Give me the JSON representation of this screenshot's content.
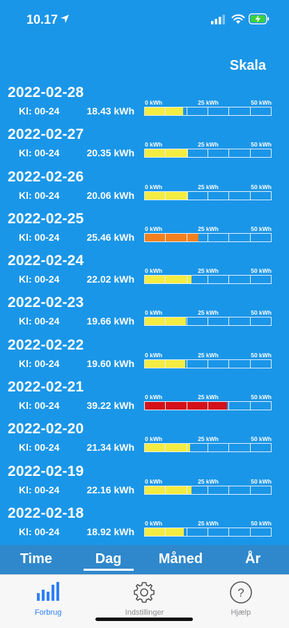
{
  "status": {
    "time": "10.17"
  },
  "header": {
    "scale_label": "Skala"
  },
  "scale": {
    "max_kwh": 60,
    "ticks": [
      "0 kWh",
      "25 kWh",
      "50 kWh"
    ]
  },
  "colors": {
    "normal": "#f4ec42",
    "elevated": "#f2801e",
    "high": "#d4111a",
    "background": "#1a96e8"
  },
  "days": [
    {
      "date": "2022-02-28",
      "interval": "Kl: 00-24",
      "value": 18.43,
      "value_label": "18.43 kWh",
      "level": "normal"
    },
    {
      "date": "2022-02-27",
      "interval": "Kl: 00-24",
      "value": 20.35,
      "value_label": "20.35 kWh",
      "level": "normal"
    },
    {
      "date": "2022-02-26",
      "interval": "Kl: 00-24",
      "value": 20.06,
      "value_label": "20.06 kWh",
      "level": "normal"
    },
    {
      "date": "2022-02-25",
      "interval": "Kl: 00-24",
      "value": 25.46,
      "value_label": "25.46 kWh",
      "level": "elevated"
    },
    {
      "date": "2022-02-24",
      "interval": "Kl: 00-24",
      "value": 22.02,
      "value_label": "22.02 kWh",
      "level": "normal"
    },
    {
      "date": "2022-02-23",
      "interval": "Kl: 00-24",
      "value": 19.66,
      "value_label": "19.66 kWh",
      "level": "normal"
    },
    {
      "date": "2022-02-22",
      "interval": "Kl: 00-24",
      "value": 19.6,
      "value_label": "19.60 kWh",
      "level": "normal"
    },
    {
      "date": "2022-02-21",
      "interval": "Kl: 00-24",
      "value": 39.22,
      "value_label": "39.22 kWh",
      "level": "high"
    },
    {
      "date": "2022-02-20",
      "interval": "Kl: 00-24",
      "value": 21.34,
      "value_label": "21.34 kWh",
      "level": "normal"
    },
    {
      "date": "2022-02-19",
      "interval": "Kl: 00-24",
      "value": 22.16,
      "value_label": "22.16 kWh",
      "level": "normal"
    },
    {
      "date": "2022-02-18",
      "interval": "Kl: 00-24",
      "value": 18.92,
      "value_label": "18.92 kWh",
      "level": "normal"
    }
  ],
  "period_tabs": [
    {
      "label": "Time",
      "active": false
    },
    {
      "label": "Dag",
      "active": true
    },
    {
      "label": "Måned",
      "active": false
    },
    {
      "label": "År",
      "active": false
    }
  ],
  "tab_bar": [
    {
      "label": "Forbrug",
      "icon": "bar-chart-icon",
      "active": true
    },
    {
      "label": "Indstillinger",
      "icon": "gear-icon",
      "active": false
    },
    {
      "label": "Hjælp",
      "icon": "question-icon",
      "active": false
    }
  ]
}
